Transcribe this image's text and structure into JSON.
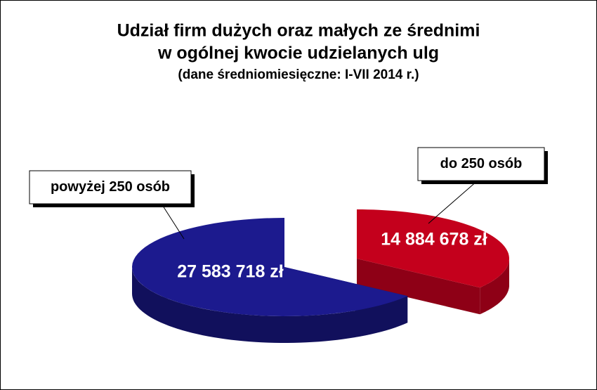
{
  "chart_data": {
    "type": "pie3d",
    "title": [
      "Udział firm dużych oraz małych ze średnimi",
      "w ogólnej kwocie udzielanych ulg"
    ],
    "subtitle": "(dane średniomiesięczne: I-VII 2014 r.)",
    "categories": [
      "do 250 osób",
      "powyżej 250 osób"
    ],
    "values": [
      14884678,
      27583718
    ],
    "value_labels": [
      "14 884 678 zł",
      "27 583 718 zł"
    ],
    "colors": [
      "#c4001c",
      "#1c1a8e"
    ]
  }
}
